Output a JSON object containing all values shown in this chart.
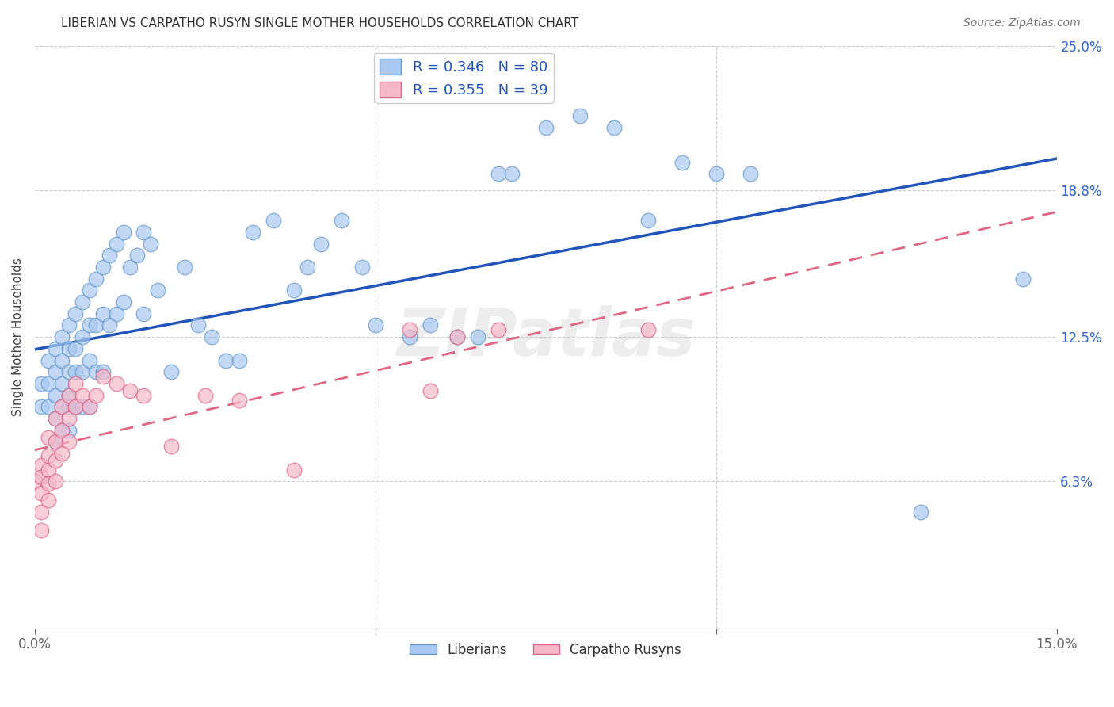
{
  "title": "LIBERIAN VS CARPATHO RUSYN SINGLE MOTHER HOUSEHOLDS CORRELATION CHART",
  "source": "Source: ZipAtlas.com",
  "ylabel": "Single Mother Households",
  "xlim": [
    0.0,
    0.15
  ],
  "ylim": [
    0.0,
    0.25
  ],
  "ytick_labels_right": [
    "25.0%",
    "18.8%",
    "12.5%",
    "6.3%"
  ],
  "ytick_values_right": [
    0.25,
    0.188,
    0.125,
    0.063
  ],
  "liberian_R": 0.346,
  "liberian_N": 80,
  "carpatho_R": 0.355,
  "carpatho_N": 39,
  "liberian_color": "#a8c8f0",
  "liberian_edge_color": "#6699cc",
  "carpatho_color": "#f5b8c8",
  "carpatho_edge_color": "#dd6688",
  "liberian_line_color": "#2255bb",
  "carpatho_line_color": "#dd5577",
  "watermark": "ZIPatlas",
  "liberian_x": [
    0.001,
    0.001,
    0.002,
    0.002,
    0.002,
    0.003,
    0.003,
    0.003,
    0.003,
    0.003,
    0.004,
    0.004,
    0.004,
    0.004,
    0.004,
    0.005,
    0.005,
    0.005,
    0.005,
    0.005,
    0.005,
    0.006,
    0.006,
    0.006,
    0.006,
    0.007,
    0.007,
    0.007,
    0.007,
    0.008,
    0.008,
    0.008,
    0.008,
    0.009,
    0.009,
    0.009,
    0.01,
    0.01,
    0.01,
    0.011,
    0.011,
    0.012,
    0.012,
    0.013,
    0.013,
    0.014,
    0.015,
    0.016,
    0.016,
    0.017,
    0.018,
    0.02,
    0.022,
    0.024,
    0.026,
    0.028,
    0.03,
    0.032,
    0.035,
    0.038,
    0.04,
    0.042,
    0.045,
    0.048,
    0.05,
    0.055,
    0.058,
    0.062,
    0.065,
    0.068,
    0.07,
    0.075,
    0.08,
    0.085,
    0.09,
    0.095,
    0.1,
    0.105,
    0.13,
    0.145
  ],
  "liberian_y": [
    0.105,
    0.095,
    0.115,
    0.105,
    0.095,
    0.12,
    0.11,
    0.1,
    0.09,
    0.08,
    0.125,
    0.115,
    0.105,
    0.095,
    0.085,
    0.13,
    0.12,
    0.11,
    0.1,
    0.095,
    0.085,
    0.135,
    0.12,
    0.11,
    0.095,
    0.14,
    0.125,
    0.11,
    0.095,
    0.145,
    0.13,
    0.115,
    0.095,
    0.15,
    0.13,
    0.11,
    0.155,
    0.135,
    0.11,
    0.16,
    0.13,
    0.165,
    0.135,
    0.17,
    0.14,
    0.155,
    0.16,
    0.17,
    0.135,
    0.165,
    0.145,
    0.11,
    0.155,
    0.13,
    0.125,
    0.115,
    0.115,
    0.17,
    0.175,
    0.145,
    0.155,
    0.165,
    0.175,
    0.155,
    0.13,
    0.125,
    0.13,
    0.125,
    0.125,
    0.195,
    0.195,
    0.215,
    0.22,
    0.215,
    0.175,
    0.2,
    0.195,
    0.195,
    0.05,
    0.15
  ],
  "carpatho_x": [
    0.0,
    0.001,
    0.001,
    0.001,
    0.001,
    0.001,
    0.002,
    0.002,
    0.002,
    0.002,
    0.002,
    0.003,
    0.003,
    0.003,
    0.003,
    0.004,
    0.004,
    0.004,
    0.005,
    0.005,
    0.005,
    0.006,
    0.006,
    0.007,
    0.008,
    0.009,
    0.01,
    0.012,
    0.014,
    0.016,
    0.02,
    0.025,
    0.03,
    0.038,
    0.055,
    0.058,
    0.062,
    0.068,
    0.09
  ],
  "carpatho_y": [
    0.063,
    0.07,
    0.065,
    0.058,
    0.05,
    0.042,
    0.082,
    0.074,
    0.068,
    0.062,
    0.055,
    0.09,
    0.08,
    0.072,
    0.063,
    0.095,
    0.085,
    0.075,
    0.1,
    0.09,
    0.08,
    0.105,
    0.095,
    0.1,
    0.095,
    0.1,
    0.108,
    0.105,
    0.102,
    0.1,
    0.078,
    0.1,
    0.098,
    0.068,
    0.128,
    0.102,
    0.125,
    0.128,
    0.128
  ]
}
